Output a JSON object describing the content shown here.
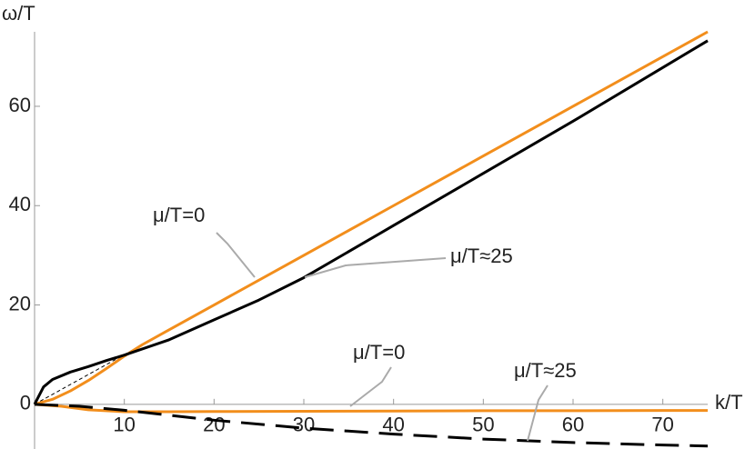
{
  "chart_data": {
    "type": "line",
    "xlabel": "k/T",
    "ylabel": "ω/T",
    "xlim": [
      0,
      75
    ],
    "ylim": [
      -9,
      75
    ],
    "xticks": [
      10,
      20,
      30,
      40,
      50,
      60,
      70
    ],
    "yticks": [
      0,
      20,
      40,
      60
    ],
    "series": [
      {
        "color": "#000000",
        "dash": "short",
        "width": 1,
        "x": [
          0,
          75
        ],
        "y": [
          0,
          75
        ]
      },
      {
        "name": "μ/T=0",
        "color": "#f28e1c",
        "width": 3,
        "x": [
          0,
          2,
          4,
          6,
          8,
          10,
          12,
          15,
          20,
          30,
          40,
          50,
          60,
          70,
          75
        ],
        "y": [
          0,
          1,
          2.7,
          4.8,
          7.2,
          9.7,
          12,
          15,
          20,
          30,
          40,
          50,
          60,
          70,
          75
        ]
      },
      {
        "name": "μ/T≈25",
        "color": "#000000",
        "width": 3,
        "x": [
          0,
          1,
          2,
          4,
          6,
          8,
          10,
          15,
          20,
          25,
          30,
          40,
          50,
          60,
          70,
          75
        ],
        "y": [
          0,
          3.5,
          5,
          6.5,
          7.6,
          8.8,
          9.9,
          13,
          17,
          21,
          25.5,
          36,
          46.5,
          57,
          67.8,
          73.2
        ]
      },
      {
        "name": "μ/T=0",
        "color": "#f28e1c",
        "width": 3,
        "x": [
          0,
          3,
          6,
          10,
          15,
          20,
          30,
          40,
          50,
          60,
          70,
          75
        ],
        "y": [
          0,
          -0.4,
          -1.1,
          -1.5,
          -1.5,
          -1.45,
          -1.4,
          -1.35,
          -1.3,
          -1.3,
          -1.25,
          -1.25
        ]
      },
      {
        "name": "μ/T≈25",
        "color": "#000000",
        "dash": "long",
        "width": 3,
        "x": [
          0,
          5,
          10,
          20,
          30,
          40,
          50,
          60,
          70,
          75
        ],
        "y": [
          0,
          -0.4,
          -1.2,
          -3.2,
          -4.8,
          -6,
          -7,
          -7.7,
          -8.2,
          -8.4
        ]
      }
    ]
  }
}
